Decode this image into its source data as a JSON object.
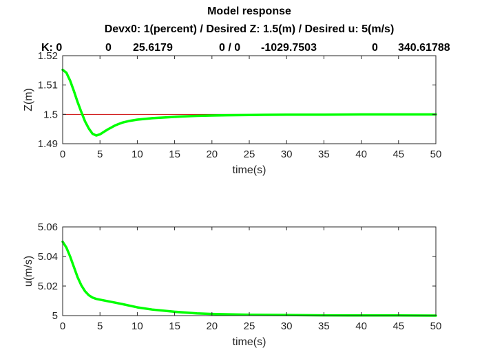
{
  "figure": {
    "title": "Model response",
    "subtitle": "Devx0: 1(percent) / Desired Z: 1.5(m) / Desired u: 5(m/s)",
    "gains_row": [
      "K: 0",
      "0",
      "25.6179",
      "0 / 0",
      "-1029.7503",
      "0",
      "340.61788"
    ]
  },
  "colors": {
    "response": "#00ff00",
    "setpoint": "#cc0000",
    "axes": "#262626",
    "background": "#ffffff"
  },
  "chart_data": [
    {
      "type": "line",
      "title": "",
      "xlabel": "time(s)",
      "ylabel": "Z(m)",
      "xlim": [
        0,
        50
      ],
      "ylim": [
        1.49,
        1.52
      ],
      "xticks": [
        0,
        5,
        10,
        15,
        20,
        25,
        30,
        35,
        40,
        45,
        50
      ],
      "yticks": [
        1.49,
        1.5,
        1.51,
        1.52
      ],
      "xtick_labels": [
        "0",
        "5",
        "10",
        "15",
        "20",
        "25",
        "30",
        "35",
        "40",
        "45",
        "50"
      ],
      "ytick_labels": [
        "1.49",
        "1.5",
        "1.51",
        "1.52"
      ],
      "grid": false,
      "series": [
        {
          "role": "response",
          "x": [
            0,
            0.5,
            1,
            1.5,
            2,
            2.5,
            3,
            3.5,
            4,
            4.5,
            5,
            6,
            7,
            8,
            9,
            10,
            12,
            14,
            16,
            18,
            20,
            22,
            25,
            30,
            35,
            40,
            45,
            50
          ],
          "y": [
            1.5152,
            1.5142,
            1.5115,
            1.508,
            1.5042,
            1.5008,
            1.4976,
            1.4952,
            1.4934,
            1.4928,
            1.4932,
            1.4948,
            1.4962,
            1.4972,
            1.4978,
            1.4982,
            1.4987,
            1.499,
            1.4993,
            1.4995,
            1.4996,
            1.4997,
            1.4998,
            1.4999,
            1.4999,
            1.5,
            1.5,
            1.5
          ]
        },
        {
          "role": "setpoint",
          "x": [
            0,
            50
          ],
          "y": [
            1.5,
            1.5
          ]
        }
      ]
    },
    {
      "type": "line",
      "title": "",
      "xlabel": "time(s)",
      "ylabel": "u(m/s)",
      "xlim": [
        0,
        50
      ],
      "ylim": [
        5,
        5.06
      ],
      "xticks": [
        0,
        5,
        10,
        15,
        20,
        25,
        30,
        35,
        40,
        45,
        50
      ],
      "yticks": [
        5,
        5.02,
        5.04,
        5.06
      ],
      "xtick_labels": [
        "0",
        "5",
        "10",
        "15",
        "20",
        "25",
        "30",
        "35",
        "40",
        "45",
        "50"
      ],
      "ytick_labels": [
        "5",
        "5.02",
        "5.04",
        "5.06"
      ],
      "grid": false,
      "series": [
        {
          "role": "response",
          "x": [
            0,
            0.5,
            1,
            1.5,
            2,
            2.5,
            3,
            3.5,
            4,
            4.5,
            5,
            6,
            7,
            8,
            10,
            12,
            15,
            18,
            20,
            25,
            30,
            35,
            40,
            45,
            50
          ],
          "y": [
            5.05,
            5.046,
            5.04,
            5.033,
            5.026,
            5.0205,
            5.0165,
            5.0138,
            5.0122,
            5.0113,
            5.0108,
            5.0098,
            5.0088,
            5.0078,
            5.0056,
            5.0041,
            5.0026,
            5.0015,
            5.0011,
            5.0006,
            5.0004,
            5.0002,
            5.0001,
            5.0001,
            5.0
          ]
        },
        {
          "role": "setpoint",
          "x": [
            0,
            50
          ],
          "y": [
            5.0,
            5.0
          ]
        }
      ]
    }
  ]
}
